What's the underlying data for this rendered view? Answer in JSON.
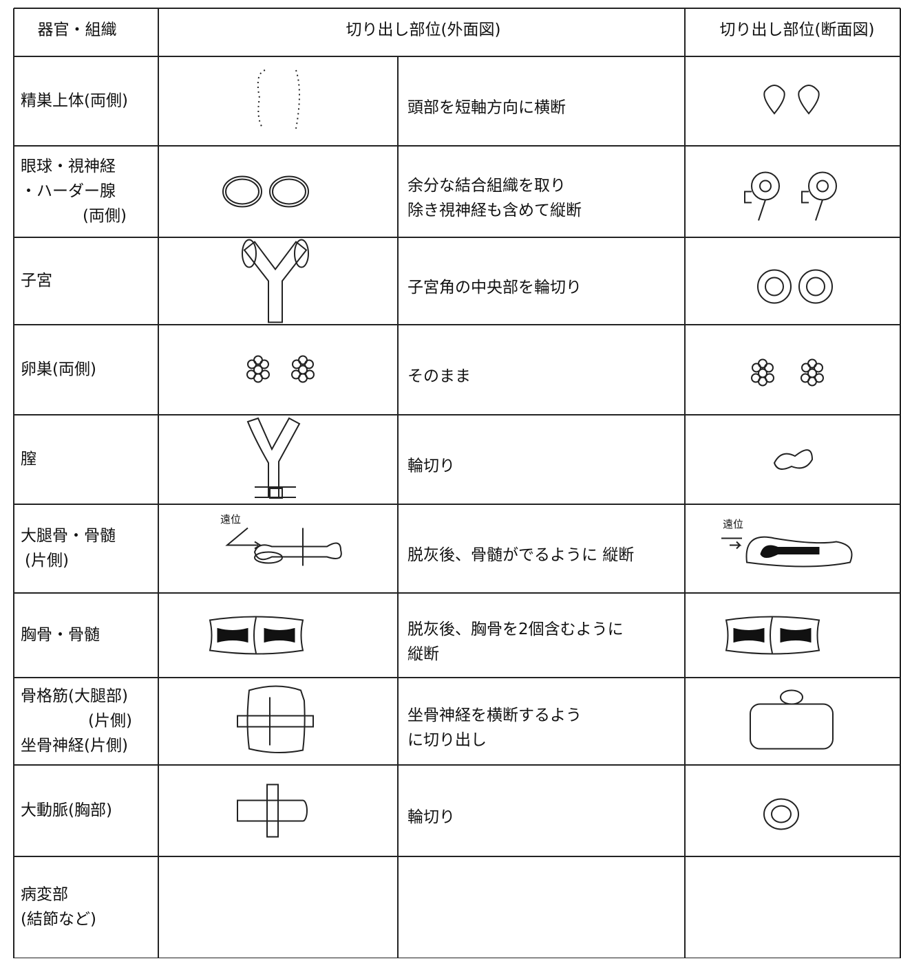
{
  "header": {
    "organ": "器官・組織",
    "outer": "切り出し部位(外面図)",
    "section": "切り出し部位(断面図)"
  },
  "rows": [
    {
      "organ": [
        "精巣上体(両側)"
      ],
      "method": [
        "頭部を短軸方向に横断"
      ]
    },
    {
      "organ": [
        "眼球・視神経",
        "・ハーダー腺",
        "(両側)"
      ],
      "method": [
        "余分な結合組織を取り",
        "除き視神経も含めて縦断"
      ]
    },
    {
      "organ": [
        "子宮"
      ],
      "method": [
        "子宮角の中央部を輪切り"
      ]
    },
    {
      "organ": [
        "卵巣(両側)"
      ],
      "method": [
        "そのまま"
      ]
    },
    {
      "organ": [
        "膣"
      ],
      "method": [
        "輪切り"
      ]
    },
    {
      "organ": [
        "大腿骨・骨髄",
        "(片側)"
      ],
      "method": [
        "脱灰後、骨髄がでるように 縦断"
      ],
      "outer_label": "遠位",
      "section_label": "遠位"
    },
    {
      "organ": [
        "胸骨・骨髄"
      ],
      "method": [
        "脱灰後、胸骨を2個含むように",
        "縦断"
      ]
    },
    {
      "organ": [
        "骨格筋(大腿部)",
        "(片側)",
        "坐骨神経(片側)"
      ],
      "method": [
        "坐骨神経を横断するよう",
        "に切り出し"
      ]
    },
    {
      "organ": [
        "大動脈(胸部)"
      ],
      "method": [
        "輪切り"
      ]
    },
    {
      "organ": [
        "病変部",
        "(結節など)"
      ],
      "method": []
    }
  ]
}
